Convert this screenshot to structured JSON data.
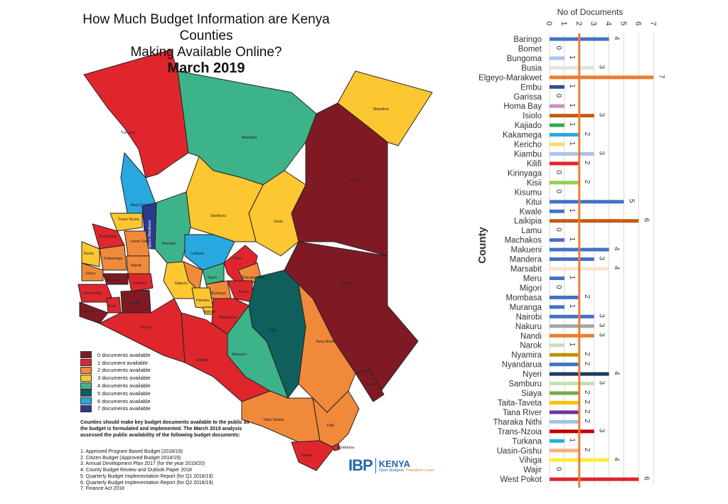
{
  "title": {
    "line1": "How Much Budget Information are Kenya Counties",
    "line2": "Making Available Online?",
    "line3": "March 2019"
  },
  "legend": [
    {
      "label": "0 documents available",
      "color": "#7f1a24"
    },
    {
      "label": "1 document available",
      "color": "#e0262d"
    },
    {
      "label": "2 documents available",
      "color": "#f08a3a"
    },
    {
      "label": "3 documents available",
      "color": "#fdc731"
    },
    {
      "label": "4 documents available",
      "color": "#3db38a"
    },
    {
      "label": "5 documents available",
      "color": "#0f5f5c"
    },
    {
      "label": "6 documents available",
      "color": "#29a8e0"
    },
    {
      "label": "7 documents available",
      "color": "#2b3a8f"
    }
  ],
  "note": "Counties should make key budget documents available to the public as the budget is formulated and implemented. The March 2019 analysis assessed the public availability of the following budget documents:",
  "documents": [
    "1.  Approved Program Based Budget  (2018/19)",
    "2.  Citizen Budget (Approved Budget 2018/19)",
    "3.  Annual Development Plan 2017 (for the year 2019/20)",
    "4.  County Budget Review and Outlook Paper 2018",
    "5.  Quarterly Budget Implementation Report (for Q1 2018/19)",
    "6.  Quarterly Budget Implementation Report (for Q2 2018/19)",
    "7.  Finance Act 2018"
  ],
  "logo": {
    "ibp": "IBP",
    "kenya": "KENYA",
    "tagline_a": "Open Budgets.",
    "tagline_b": "Transform",
    "tagline_c": "Lives."
  },
  "map_labels": {
    "turkana": "Turkana",
    "marsabit": "Marsabit",
    "mandera": "Mandera",
    "wajir": "Wajir",
    "west_pokot": "West Pokot",
    "samburu": "Samburu",
    "isiolo": "Isiolo",
    "trans_nzoia": "Trans Nzoia",
    "elgeyo": "Elgeyo Marakwet",
    "baringo": "Baringo",
    "bungoma": "Bungoma",
    "uasin_gishu": "Uasin Gishu",
    "busia": "Busia",
    "kakamega": "Kakamega",
    "nandi": "Nandi",
    "siaya": "Siaya",
    "laikipia": "Laikipia",
    "meru": "Meru",
    "kisumu": "Kisumu",
    "kericho": "Kericho",
    "nakuru": "Nakuru",
    "nyeri": "Nyeri",
    "nyandarua": "Nyandarua",
    "tharaka": "Tharaka Nithi",
    "embu": "Embu",
    "homa_bay": "Homa Bay",
    "kisii": "Kisii",
    "bomet": "Bomet",
    "migori": "Migori",
    "muranga": "Muranga",
    "kiambu": "Kiambu",
    "nairobi": "Nairobi",
    "machakos": "Machakos",
    "garissa": "Garissa",
    "narok": "Narok",
    "kitui": "Kitui",
    "tana_river": "Tana River",
    "makueni": "Makueni",
    "kajiado": "Kajiado",
    "lamu": "Lamu",
    "kilifi": "Kilifi",
    "taita": "Taita-Taveta",
    "kwale": "Kwale",
    "mombasa": "Mombasa"
  },
  "chart_data": {
    "type": "bar",
    "orientation": "horizontal",
    "title": "No of Documents",
    "xlabel": "No of Documents",
    "ylabel": "County",
    "xlim": [
      0,
      7
    ],
    "xticks": [
      "0",
      "1",
      "2",
      "3",
      "4",
      "5",
      "6",
      "7"
    ],
    "grid": true,
    "reference_line": {
      "value": 2,
      "color": "#ed7d31"
    },
    "categories": [
      "Baringo",
      "Bomet",
      "Bungoma",
      "Busia",
      "Elgeyo-Marakwet",
      "Embu",
      "Garissa",
      "Homa Bay",
      "Isiolo",
      "Kajiado",
      "Kakamega",
      "Kericho",
      "Kiambu",
      "Kilifi",
      "Kirinyaga",
      "Kisii",
      "Kisumu",
      "Kitui",
      "Kwale",
      "Laikipia",
      "Lamu",
      "Machakos",
      "Makueni",
      "Mandera",
      "Marsabit",
      "Meru",
      "Migori",
      "Mombasa",
      "Muranga",
      "Nairobi",
      "Nakuru",
      "Nandi",
      "Narok",
      "Nyamira",
      "Nyandarua",
      "Nyeri",
      "Samburu",
      "Siaya",
      "Taita-Taveta",
      "Tana River",
      "Tharaka Nithi",
      "Trans-Nzoia",
      "Turkana",
      "Uasin-Gishu",
      "Vihiga",
      "Wajir",
      "West Pokot"
    ],
    "values": [
      4,
      0,
      1,
      3,
      7,
      1,
      0,
      1,
      3,
      1,
      2,
      1,
      3,
      2,
      0,
      2,
      0,
      5,
      1,
      6,
      0,
      1,
      4,
      3,
      4,
      1,
      0,
      2,
      1,
      3,
      3,
      3,
      1,
      2,
      2,
      4,
      3,
      2,
      2,
      2,
      2,
      3,
      1,
      2,
      4,
      0,
      6
    ],
    "colors": [
      "#4472c4",
      "#4472c4",
      "#a9c4e8",
      "#e3e3e3",
      "#ed7d31",
      "#2f4f8f",
      "#4472c4",
      "#c88fc5",
      "#c55a11",
      "#33a853",
      "#26a9e0",
      "#ffd966",
      "#a9c4e8",
      "#e0262d",
      "#4472c4",
      "#92d050",
      "#4472c4",
      "#4472c4",
      "#4472c4",
      "#c55a11",
      "#4472c4",
      "#4472c4",
      "#4472c4",
      "#4472c4",
      "#fbe5d6",
      "#4472c4",
      "#4472c4",
      "#4472c4",
      "#4472c4",
      "#4472c4",
      "#a5a5a5",
      "#ed7d31",
      "#c5e0b4",
      "#bf9000",
      "#4472c4",
      "#1f3864",
      "#c5e0b4",
      "#70ad47",
      "#ffc000",
      "#7030a0",
      "#9dc3e6",
      "#c00000",
      "#1fb0e0",
      "#f4b183",
      "#ffeb3b",
      "#4472c4",
      "#e0262d"
    ]
  }
}
